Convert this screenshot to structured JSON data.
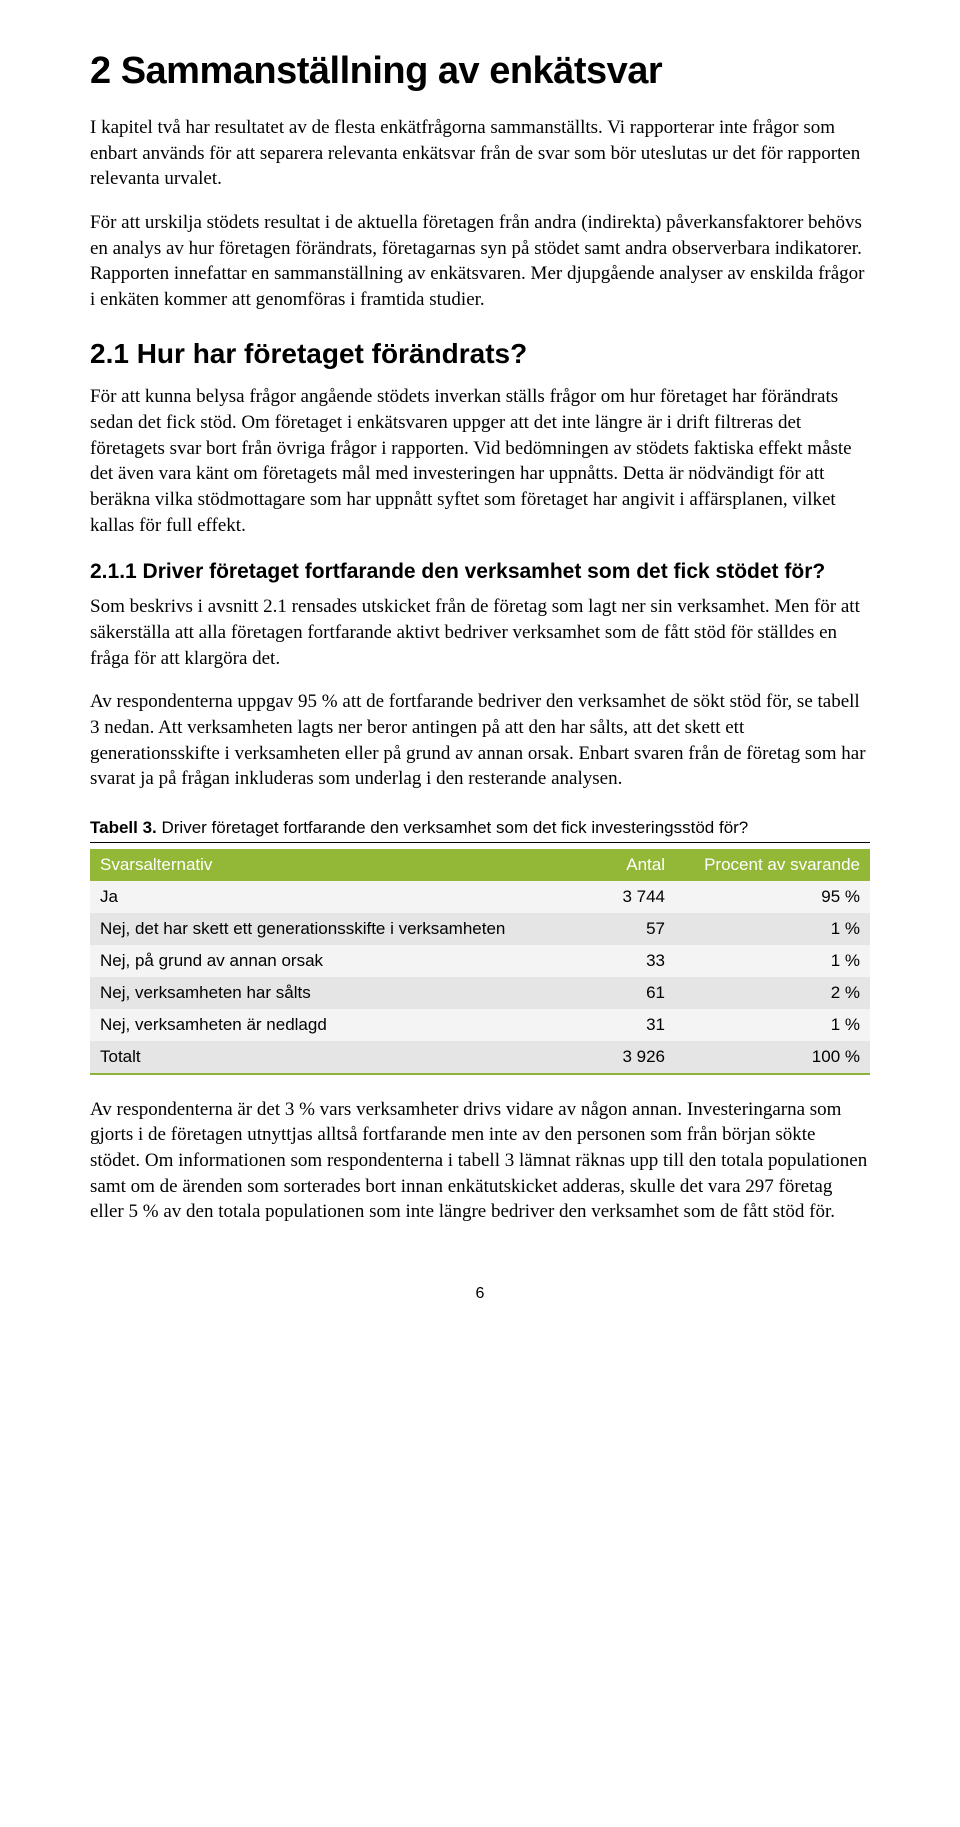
{
  "h1": "2   Sammanställning av enkätsvar",
  "p1": "I kapitel två har resultatet av de flesta enkätfrågorna sammanställts. Vi rapporterar inte frågor som enbart används för att separera relevanta enkätsvar från de svar som bör uteslutas ur det för rapporten relevanta urvalet.",
  "p2": "För att urskilja stödets resultat i de aktuella företagen från andra (indirekta) påverkansfaktorer behövs en analys av hur företagen förändrats, företagarnas syn på stödet samt andra observerbara indikatorer. Rapporten innefattar en samman­ställning av enkätsvaren. Mer djupgående analyser av enskilda frågor i enkäten kommer att genomföras i framtida studier.",
  "h2": "2.1   Hur har företaget förändrats?",
  "p3": "För att kunna belysa frågor angående stödets inverkan ställs frågor om hur före­taget har förändrats sedan det fick stöd. Om företaget i enkätsvaren uppger att det inte längre är i drift filtreras det företagets svar bort från övriga frågor i rapporten. Vid bedömningen av stödets faktiska effekt måste det även vara känt om före­tagets mål med investeringen har uppnåtts. Detta är nödvändigt för att beräkna vilka stödmottagare som har uppnått syftet som företaget har angivit i affärs­planen, vilket kallas för full effekt.",
  "h3": "2.1.1   Driver företaget fortfarande den verksamhet som det fick stödet för?",
  "p4": "Som beskrivs i avsnitt 2.1 rensades utskicket från de företag som lagt ner sin verksamhet. Men för att säkerställa att alla företagen fortfarande aktivt bedriver verksamhet som de fått stöd för ställdes en fråga för att klargöra det.",
  "p5": "Av respondenterna uppgav 95 % att de fortfarande bedriver den verksamhet de sökt stöd för, se tabell 3 nedan. Att verksamheten lagts ner beror antingen på att den har sålts, att det skett ett generationsskifte i verksamheten eller på grund av annan orsak. Enbart svaren från de företag som har svarat ja på frågan inkluderas som underlag i den resterande analysen.",
  "table": {
    "caption_bold": "Tabell 3.",
    "caption_rest": "  Driver företaget fortfarande den verksamhet som det fick investeringsstöd för?",
    "header_bg": "#93b838",
    "header_color": "#ffffff",
    "row_dark": "#e5e5e5",
    "row_light": "#f4f4f4",
    "columns": [
      "Svarsalternativ",
      "Antal",
      "Procent av svarande"
    ],
    "col_widths": [
      "58%",
      "17%",
      "25%"
    ],
    "rows": [
      [
        "Ja",
        "3 744",
        "95 %"
      ],
      [
        "Nej, det har skett ett generationsskifte i verksamheten",
        "57",
        "1 %"
      ],
      [
        "Nej, på grund av annan orsak",
        "33",
        "1 %"
      ],
      [
        "Nej, verksamheten har sålts",
        "61",
        "2 %"
      ],
      [
        "Nej, verksamheten är nedlagd",
        "31",
        "1 %"
      ],
      [
        "Totalt",
        "3 926",
        "100 %"
      ]
    ]
  },
  "p6": "Av respondenterna är det 3 % vars verksamheter drivs vidare av någon annan. Investeringarna som gjorts i de företagen utnyttjas alltså fortfarande men inte av den personen som från början sökte stödet. Om informationen som responden­terna i tabell 3 lämnat räknas upp till den totala populationen samt om de ärenden som sorterades bort innan enkätutskicket adderas, skulle det vara 297 företag eller 5 % av den totala populationen som inte längre bedriver den verksamhet som de fått stöd för.",
  "page_number": "6"
}
